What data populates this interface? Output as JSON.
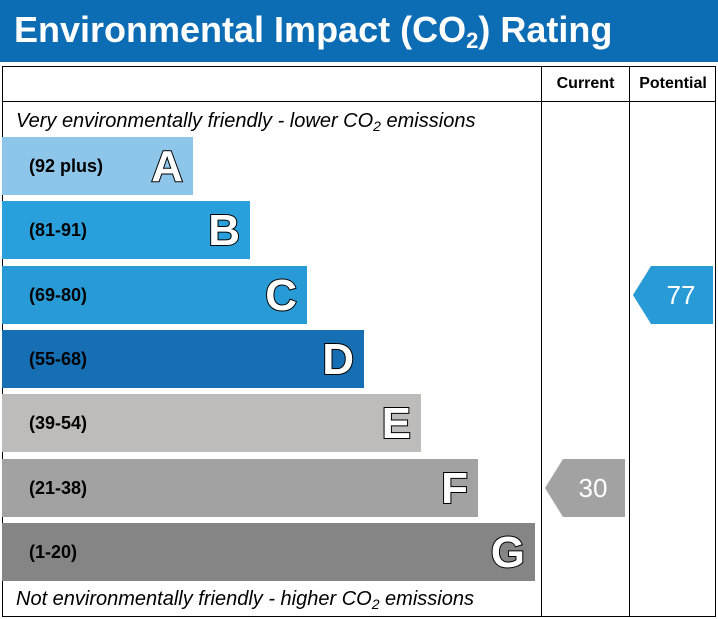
{
  "title": {
    "prefix": "Environmental Impact (CO",
    "sub": "2",
    "suffix": ") Rating"
  },
  "columns": {
    "current": "Current",
    "potential": "Potential"
  },
  "top_note": {
    "prefix": "Very environmentally friendly - lower CO",
    "sub": "2",
    "suffix": " emissions"
  },
  "bottom_note": {
    "prefix": "Not environmentally friendly - higher CO",
    "sub": "2",
    "suffix": " emissions"
  },
  "chart_data": {
    "type": "bar",
    "categories": [
      "A",
      "B",
      "C",
      "D",
      "E",
      "F",
      "G"
    ],
    "bands": [
      {
        "letter": "A",
        "range": "(92 plus)",
        "color": "#8dc6e8"
      },
      {
        "letter": "B",
        "range": "(81-91)",
        "color": "#29a0dc"
      },
      {
        "letter": "C",
        "range": "(69-80)",
        "color": "#289bd6"
      },
      {
        "letter": "D",
        "range": "(55-68)",
        "color": "#166fb3"
      },
      {
        "letter": "E",
        "range": "(39-54)",
        "color": "#bdbcbb"
      },
      {
        "letter": "F",
        "range": "(21-38)",
        "color": "#a3a2a2"
      },
      {
        "letter": "G",
        "range": "(1-20)",
        "color": "#868585"
      }
    ],
    "current": {
      "value": 30,
      "band": "F",
      "color": "#a3a2a2"
    },
    "potential": {
      "value": 77,
      "band": "C",
      "color": "#289bd6"
    }
  }
}
